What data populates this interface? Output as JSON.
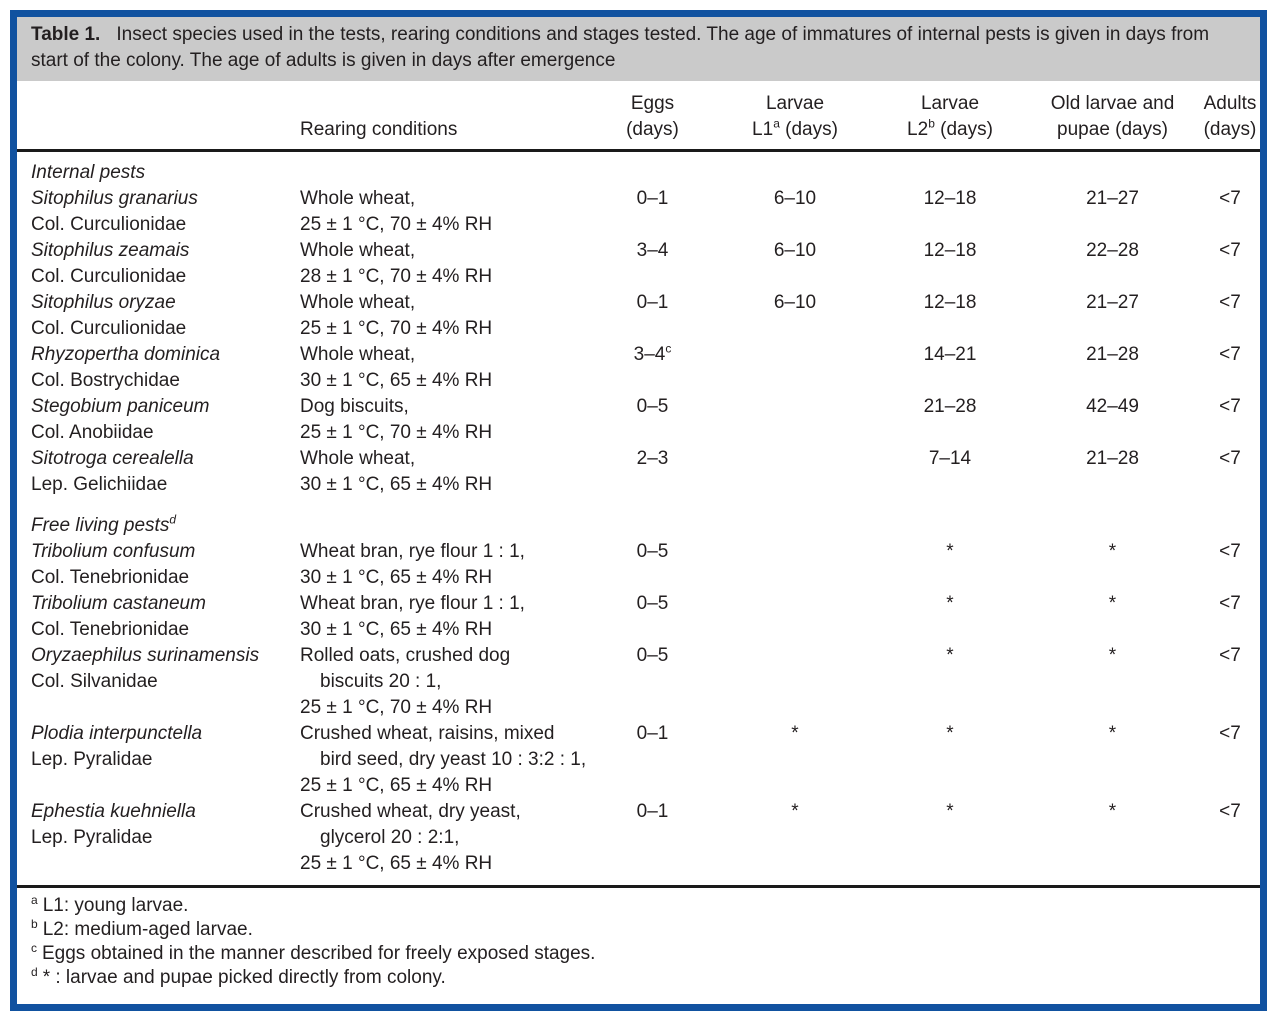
{
  "caption": {
    "label": "Table 1.",
    "text": "Insect species used in the tests, rearing conditions and stages tested. The age of immatures of internal pests is given in days from start of the colony. The age of adults is given in days after emergence"
  },
  "header": {
    "rearing": "Rearing conditions",
    "eggs": {
      "line1": "Eggs",
      "line2": "(days)"
    },
    "l1": {
      "line1": "Larvae",
      "line2": "L1",
      "sup": "a",
      "line2b": " (days)"
    },
    "l2": {
      "line1": "Larvae",
      "line2": "L2",
      "sup": "b",
      "line2b": " (days)"
    },
    "old": {
      "line1": "Old larvae and",
      "line2": "pupae (days)"
    },
    "adults": {
      "line1": "Adults",
      "line2": "(days)"
    }
  },
  "sections": [
    {
      "title": "Internal pests",
      "title_sup": "",
      "rows": [
        {
          "species": "Sitophilus granarius",
          "family": "Col. Curculionidae",
          "rearing": [
            {
              "text": "Whole wheat,",
              "indent": false
            },
            {
              "text": "25 ± 1 °C, 70 ± 4% RH",
              "indent": false
            }
          ],
          "eggs": "0–1",
          "eggs_sup": "",
          "l1": "6–10",
          "l2": "12–18",
          "old": "21–27",
          "adults": "<7"
        },
        {
          "species": "Sitophilus zeamais",
          "family": "Col. Curculionidae",
          "rearing": [
            {
              "text": "Whole wheat,",
              "indent": false
            },
            {
              "text": "28 ± 1 °C, 70 ± 4% RH",
              "indent": false
            }
          ],
          "eggs": "3–4",
          "eggs_sup": "",
          "l1": "6–10",
          "l2": "12–18",
          "old": "22–28",
          "adults": "<7"
        },
        {
          "species": "Sitophilus oryzae",
          "family": "Col. Curculionidae",
          "rearing": [
            {
              "text": "Whole wheat,",
              "indent": false
            },
            {
              "text": "25 ± 1 °C, 70 ± 4% RH",
              "indent": false
            }
          ],
          "eggs": "0–1",
          "eggs_sup": "",
          "l1": "6–10",
          "l2": "12–18",
          "old": "21–27",
          "adults": "<7"
        },
        {
          "species": "Rhyzopertha dominica",
          "family": "Col. Bostrychidae",
          "rearing": [
            {
              "text": "Whole wheat,",
              "indent": false
            },
            {
              "text": "30 ± 1 °C, 65 ± 4% RH",
              "indent": false
            }
          ],
          "eggs": "3–4",
          "eggs_sup": "c",
          "l1": "",
          "l2": "14–21",
          "old": "21–28",
          "adults": "<7"
        },
        {
          "species": "Stegobium paniceum",
          "family": "Col. Anobiidae",
          "rearing": [
            {
              "text": "Dog biscuits,",
              "indent": false
            },
            {
              "text": "25 ± 1 °C, 70 ± 4% RH",
              "indent": false
            }
          ],
          "eggs": "0–5",
          "eggs_sup": "",
          "l1": "",
          "l2": "21–28",
          "old": "42–49",
          "adults": "<7"
        },
        {
          "species": "Sitotroga cerealella",
          "family": "Lep. Gelichiidae",
          "rearing": [
            {
              "text": "Whole wheat,",
              "indent": false
            },
            {
              "text": "30 ± 1 °C, 65 ± 4% RH",
              "indent": false
            }
          ],
          "eggs": "2–3",
          "eggs_sup": "",
          "l1": "",
          "l2": "7–14",
          "old": "21–28",
          "adults": "<7"
        }
      ]
    },
    {
      "title": "Free living pests",
      "title_sup": "d",
      "rows": [
        {
          "species": "Tribolium confusum",
          "family": "Col. Tenebrionidae",
          "rearing": [
            {
              "text": "Wheat bran, rye flour 1 : 1,",
              "indent": false
            },
            {
              "text": "30 ± 1 °C, 65 ± 4% RH",
              "indent": false
            }
          ],
          "eggs": "0–5",
          "eggs_sup": "",
          "l1": "",
          "l2": "*",
          "old": "*",
          "adults": "<7"
        },
        {
          "species": "Tribolium castaneum",
          "family": "Col. Tenebrionidae",
          "rearing": [
            {
              "text": "Wheat bran, rye flour 1 : 1,",
              "indent": false
            },
            {
              "text": "30 ± 1 °C, 65 ± 4% RH",
              "indent": false
            }
          ],
          "eggs": "0–5",
          "eggs_sup": "",
          "l1": "",
          "l2": "*",
          "old": "*",
          "adults": "<7"
        },
        {
          "species": "Oryzaephilus surinamensis",
          "family": "Col. Silvanidae",
          "rearing": [
            {
              "text": "Rolled oats, crushed dog",
              "indent": false
            },
            {
              "text": "biscuits 20 : 1,",
              "indent": true
            },
            {
              "text": "25 ± 1 °C, 70 ± 4% RH",
              "indent": false
            }
          ],
          "eggs": "0–5",
          "eggs_sup": "",
          "l1": "",
          "l2": "*",
          "old": "*",
          "adults": "<7"
        },
        {
          "species": "Plodia interpunctella",
          "family": "Lep. Pyralidae",
          "rearing": [
            {
              "text": "Crushed wheat, raisins, mixed",
              "indent": false
            },
            {
              "text": "bird seed, dry yeast 10 : 3:2 : 1,",
              "indent": true
            },
            {
              "text": "25 ± 1 °C, 65 ± 4% RH",
              "indent": false
            }
          ],
          "eggs": "0–1",
          "eggs_sup": "",
          "l1": "*",
          "l2": "*",
          "old": "*",
          "adults": "<7"
        },
        {
          "species": "Ephestia kuehniella",
          "family": "Lep. Pyralidae",
          "rearing": [
            {
              "text": "Crushed wheat, dry yeast,",
              "indent": false
            },
            {
              "text": "glycerol 20 : 2:1,",
              "indent": true
            },
            {
              "text": "25 ± 1 °C, 65 ± 4% RH",
              "indent": false
            }
          ],
          "eggs": "0–1",
          "eggs_sup": "",
          "l1": "*",
          "l2": "*",
          "old": "*",
          "adults": "<7"
        }
      ]
    }
  ],
  "footnotes": [
    {
      "marker": "a",
      "text": "L1: young larvae."
    },
    {
      "marker": "b",
      "text": "L2: medium-aged larvae."
    },
    {
      "marker": "c",
      "text": "Eggs obtained in the manner described for freely exposed stages."
    },
    {
      "marker": "d",
      "text": "* : larvae and pupae picked directly from colony."
    }
  ],
  "colors": {
    "frame_border": "#1152a0",
    "caption_background": "#cacaca",
    "rule": "#1a1a1a",
    "text": "#231f20"
  }
}
